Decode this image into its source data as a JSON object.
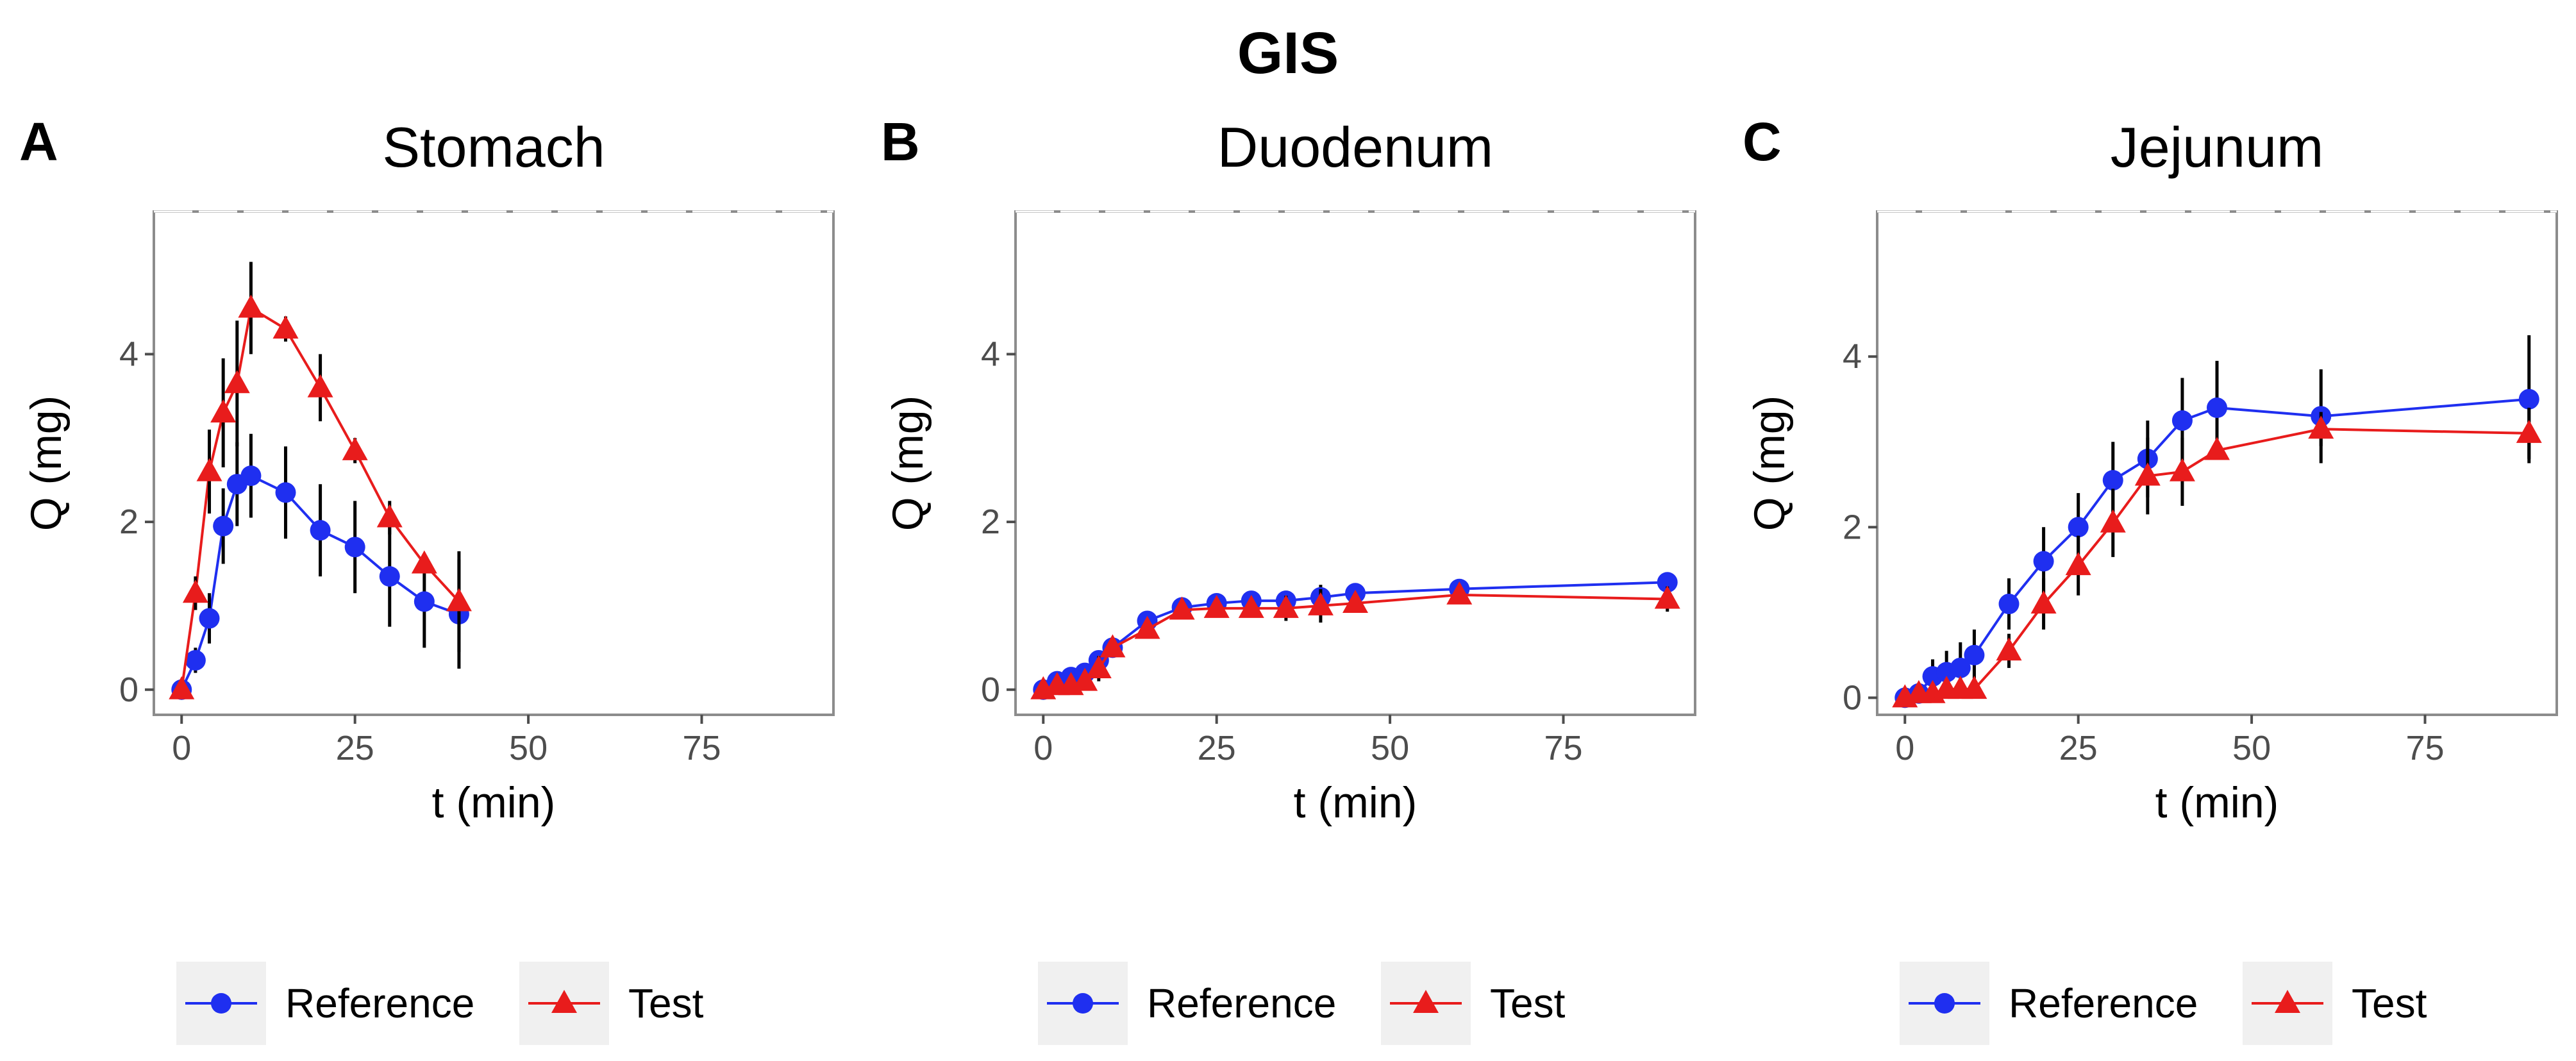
{
  "figure": {
    "title": "GIS"
  },
  "chart_data": [
    {
      "type": "line",
      "panel_label": "A",
      "title": "Stomach",
      "xlabel": "t (min)",
      "ylabel": "Q (mg)",
      "xlim": [
        -4,
        94
      ],
      "ylim": [
        -0.3,
        5.7
      ],
      "xticks": [
        0,
        25,
        50,
        75
      ],
      "yticks": [
        0,
        2,
        4
      ],
      "grid": false,
      "legend_position": "bottom",
      "series": [
        {
          "name": "Reference",
          "color": "#1f2ff0",
          "marker": "circle",
          "x": [
            0,
            2,
            4,
            6,
            8,
            10,
            15,
            20,
            25,
            30,
            35,
            40
          ],
          "y": [
            0,
            0.35,
            0.85,
            1.95,
            2.45,
            2.55,
            2.35,
            1.9,
            1.7,
            1.35,
            1.05,
            0.9
          ],
          "err": [
            0,
            0.15,
            0.3,
            0.45,
            0.5,
            0.5,
            0.55,
            0.55,
            0.55,
            0.6,
            0.55,
            0.65
          ]
        },
        {
          "name": "Test",
          "color": "#e81c1c",
          "marker": "triangle",
          "x": [
            0,
            2,
            4,
            6,
            8,
            10,
            15,
            20,
            25,
            30,
            35,
            40
          ],
          "y": [
            0,
            1.15,
            2.6,
            3.3,
            3.65,
            4.55,
            4.3,
            3.6,
            2.85,
            2.05,
            1.5,
            1.05
          ],
          "err": [
            0,
            0.2,
            0.5,
            0.65,
            0.75,
            0.55,
            0.15,
            0.4,
            0.15,
            0.2,
            0.1,
            0.6
          ]
        }
      ]
    },
    {
      "type": "line",
      "panel_label": "B",
      "title": "Duodenum",
      "xlabel": "t (min)",
      "ylabel": "Q (mg)",
      "xlim": [
        -4,
        94
      ],
      "ylim": [
        -0.3,
        5.7
      ],
      "xticks": [
        0,
        25,
        50,
        75
      ],
      "yticks": [
        0,
        2,
        4
      ],
      "grid": false,
      "legend_position": "bottom",
      "series": [
        {
          "name": "Reference",
          "color": "#1f2ff0",
          "marker": "circle",
          "x": [
            0,
            2,
            4,
            6,
            8,
            10,
            15,
            20,
            25,
            30,
            35,
            40,
            45,
            60,
            90
          ],
          "y": [
            0,
            0.1,
            0.15,
            0.2,
            0.35,
            0.5,
            0.82,
            0.98,
            1.03,
            1.06,
            1.06,
            1.1,
            1.15,
            1.2,
            1.28
          ],
          "err": [
            0,
            0.05,
            0.1,
            0.1,
            0.1,
            0.1,
            0.1,
            0.08,
            0.08,
            0.08,
            0.12,
            0.15,
            0.08,
            0.06,
            0.05
          ]
        },
        {
          "name": "Test",
          "color": "#e81c1c",
          "marker": "triangle",
          "x": [
            0,
            2,
            4,
            6,
            8,
            10,
            15,
            20,
            25,
            30,
            35,
            40,
            45,
            60,
            90
          ],
          "y": [
            0,
            0.05,
            0.05,
            0.1,
            0.25,
            0.5,
            0.72,
            0.95,
            0.97,
            0.97,
            0.97,
            1.0,
            1.03,
            1.13,
            1.08
          ],
          "err": [
            0,
            0.05,
            0.05,
            0.1,
            0.15,
            0.1,
            0.1,
            0.08,
            0.1,
            0.1,
            0.15,
            0.2,
            0.1,
            0.06,
            0.15
          ]
        }
      ]
    },
    {
      "type": "line",
      "panel_label": "C",
      "title": "Jejunum",
      "xlabel": "t (min)",
      "ylabel": "Q (mg)",
      "xlim": [
        -4,
        94
      ],
      "ylim": [
        -0.2,
        5.7
      ],
      "xticks": [
        0,
        25,
        50,
        75
      ],
      "yticks": [
        0,
        2,
        4
      ],
      "grid": false,
      "legend_position": "bottom",
      "series": [
        {
          "name": "Reference",
          "color": "#1f2ff0",
          "marker": "circle",
          "x": [
            0,
            2,
            4,
            6,
            8,
            10,
            15,
            20,
            25,
            30,
            35,
            40,
            45,
            60,
            90
          ],
          "y": [
            0,
            0.05,
            0.25,
            0.3,
            0.35,
            0.5,
            1.1,
            1.6,
            2.0,
            2.55,
            2.8,
            3.25,
            3.4,
            3.3,
            3.5
          ],
          "err": [
            0,
            0.05,
            0.2,
            0.25,
            0.3,
            0.3,
            0.3,
            0.4,
            0.4,
            0.45,
            0.45,
            0.5,
            0.55,
            0.55,
            0.75
          ]
        },
        {
          "name": "Test",
          "color": "#e81c1c",
          "marker": "triangle",
          "x": [
            0,
            2,
            4,
            6,
            8,
            10,
            15,
            20,
            25,
            30,
            35,
            40,
            45,
            60,
            90
          ],
          "y": [
            0,
            0.05,
            0.05,
            0.1,
            0.1,
            0.1,
            0.55,
            1.1,
            1.55,
            2.05,
            2.6,
            2.65,
            2.9,
            3.15,
            3.1
          ],
          "err": [
            0,
            0.05,
            0.05,
            0.1,
            0.1,
            0.1,
            0.2,
            0.3,
            0.35,
            0.4,
            0.45,
            0.4,
            0.1,
            0.2,
            0.3
          ]
        }
      ]
    }
  ]
}
